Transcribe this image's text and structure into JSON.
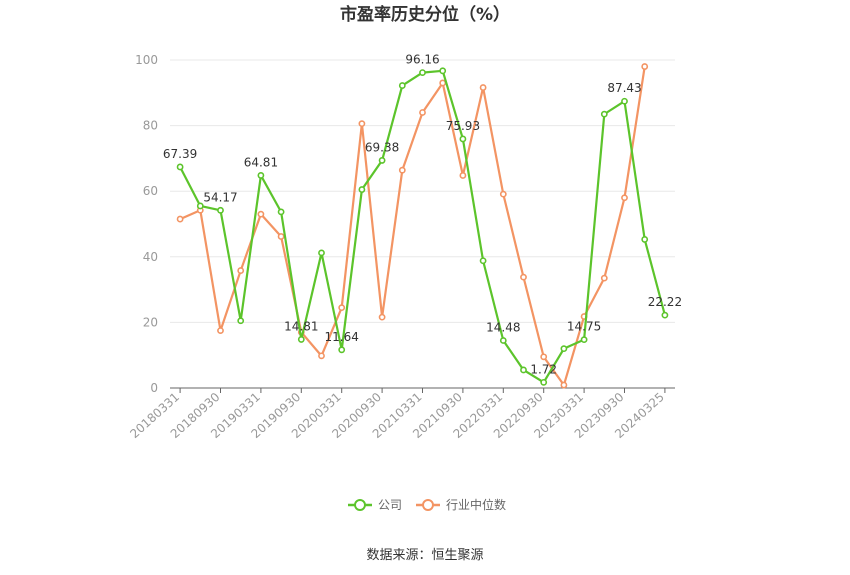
{
  "chart_data": {
    "type": "line",
    "title": "市盈率历史分位（%）",
    "source": "数据来源：恒生聚源",
    "ylim": [
      0,
      100
    ],
    "y_ticks": [
      0,
      20,
      40,
      60,
      80,
      100
    ],
    "categories": [
      "20180331",
      "20180630",
      "20180930",
      "20181231",
      "20190331",
      "20190630",
      "20190930",
      "20191231",
      "20200331",
      "20200630",
      "20200930",
      "20201231",
      "20210331",
      "20210630",
      "20210930",
      "20211231",
      "20220331",
      "20220630",
      "20220930",
      "20221231",
      "20230331",
      "20230630",
      "20230930",
      "20231231",
      "20240325"
    ],
    "x_tick_labels": [
      "20180331",
      "20180930",
      "20190331",
      "20190930",
      "20200331",
      "20200930",
      "20210331",
      "20210930",
      "20220331",
      "20220930",
      "20230331",
      "20230930",
      "20240325"
    ],
    "grid": true,
    "legend_position": "bottom",
    "series": [
      {
        "name": "公司",
        "color": "#5cc42b",
        "values": [
          67.39,
          55.5,
          54.17,
          20.5,
          64.81,
          53.7,
          14.81,
          41.2,
          11.64,
          60.5,
          69.38,
          92.2,
          96.16,
          96.7,
          75.93,
          38.8,
          14.48,
          5.5,
          1.72,
          12.0,
          14.75,
          83.5,
          87.43,
          45.3,
          22.22
        ]
      },
      {
        "name": "行业中位数",
        "color": "#f39463",
        "values": [
          51.5,
          54.2,
          17.5,
          35.8,
          53.0,
          46.2,
          17.0,
          9.8,
          24.5,
          80.6,
          21.6,
          66.4,
          84.0,
          93.0,
          64.8,
          91.6,
          59.1,
          33.8,
          9.5,
          0.9,
          21.8,
          33.5,
          58.0,
          98.0,
          null
        ]
      }
    ],
    "data_labels": [
      {
        "index": 0,
        "text": "67.39"
      },
      {
        "index": 2,
        "text": "54.17"
      },
      {
        "index": 4,
        "text": "64.81"
      },
      {
        "index": 6,
        "text": "14.81"
      },
      {
        "index": 8,
        "text": "11.64"
      },
      {
        "index": 10,
        "text": "69.38"
      },
      {
        "index": 12,
        "text": "96.16"
      },
      {
        "index": 14,
        "text": "75.93"
      },
      {
        "index": 16,
        "text": "14.48"
      },
      {
        "index": 18,
        "text": "1.72"
      },
      {
        "index": 20,
        "text": "14.75"
      },
      {
        "index": 22,
        "text": "87.43"
      },
      {
        "index": 24,
        "text": "22.22"
      }
    ]
  }
}
